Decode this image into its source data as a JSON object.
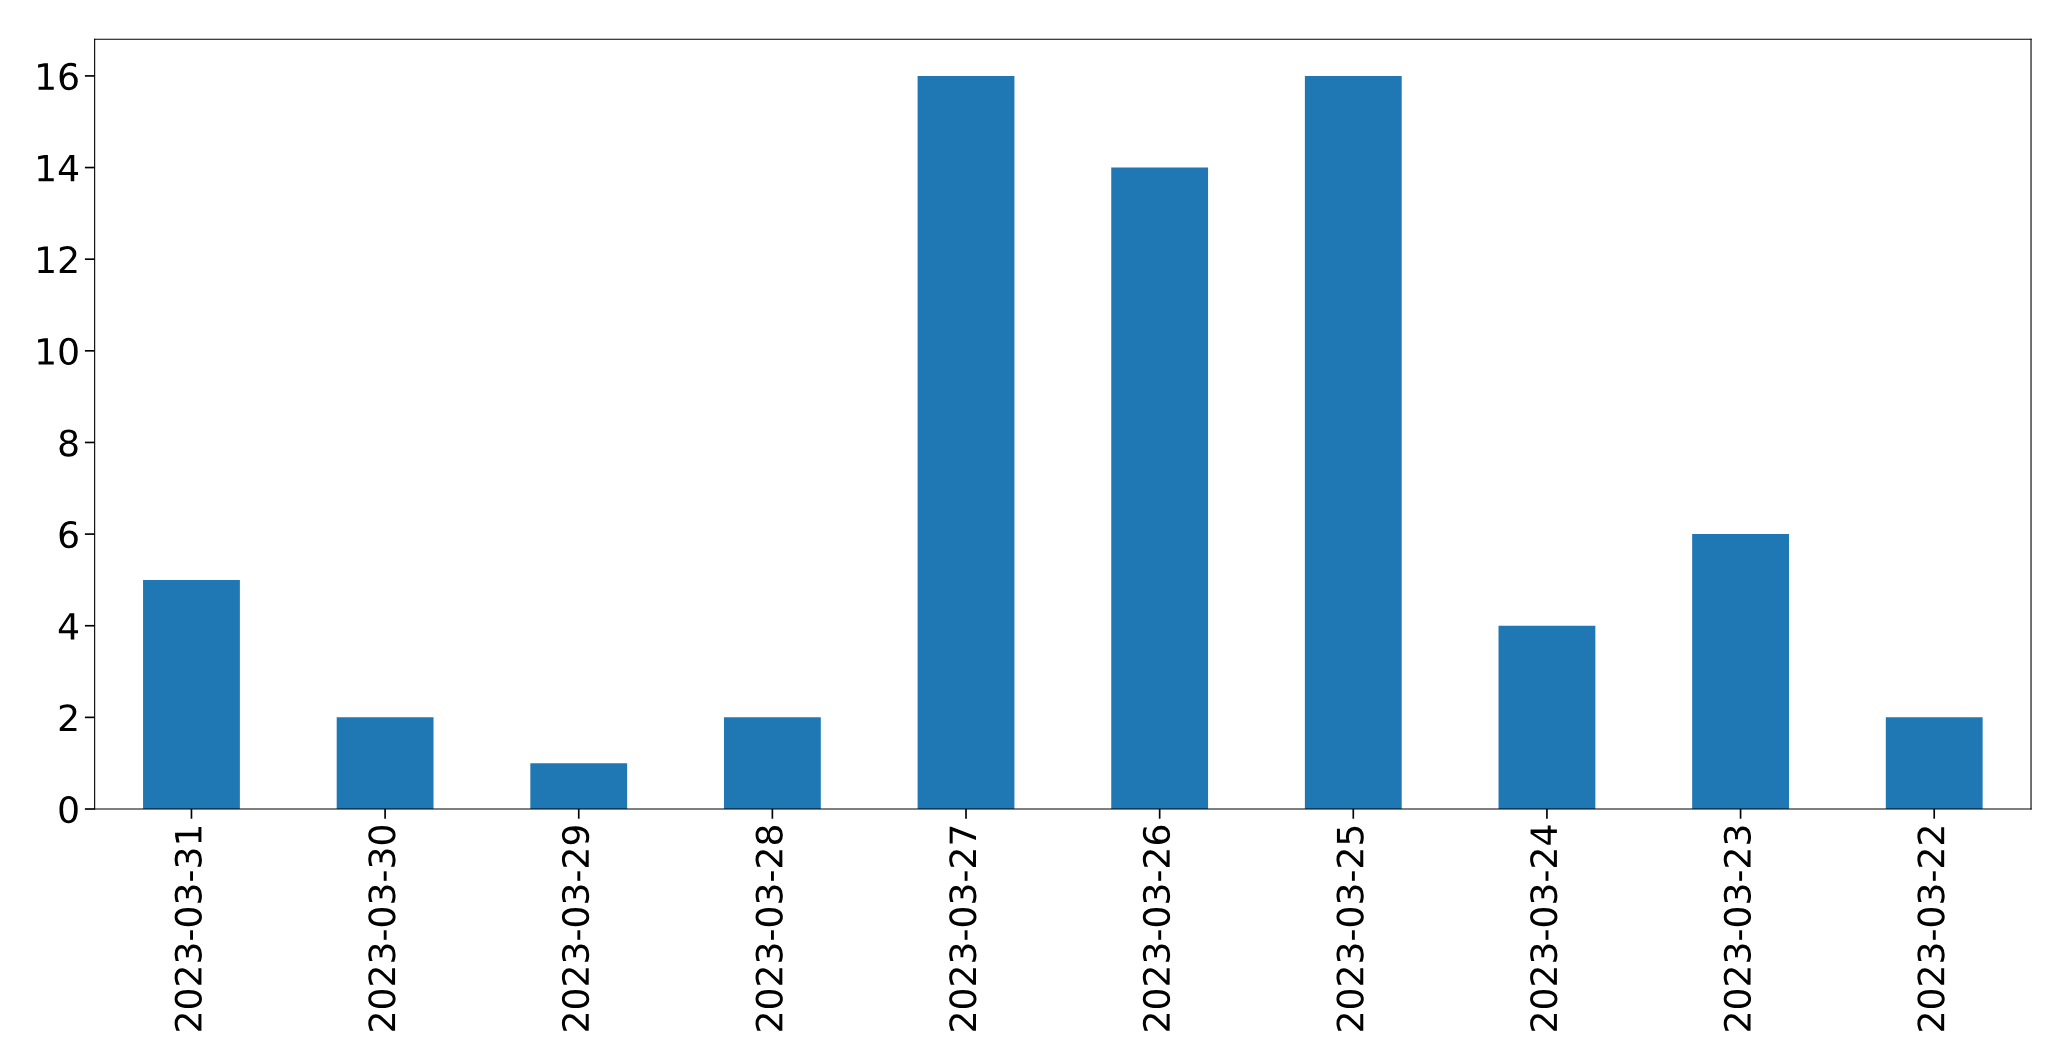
{
  "chart_data": {
    "type": "bar",
    "categories": [
      "2023-03-31",
      "2023-03-30",
      "2023-03-29",
      "2023-03-28",
      "2023-03-27",
      "2023-03-26",
      "2023-03-25",
      "2023-03-24",
      "2023-03-23",
      "2023-03-22"
    ],
    "values": [
      5,
      2,
      1,
      2,
      16,
      14,
      16,
      4,
      6,
      2
    ],
    "color": "#1f77b4",
    "ylim": [
      0,
      16.8
    ],
    "yticks": [
      0,
      2,
      4,
      6,
      8,
      10,
      12,
      14,
      16
    ],
    "grid": false,
    "legend": false
  }
}
